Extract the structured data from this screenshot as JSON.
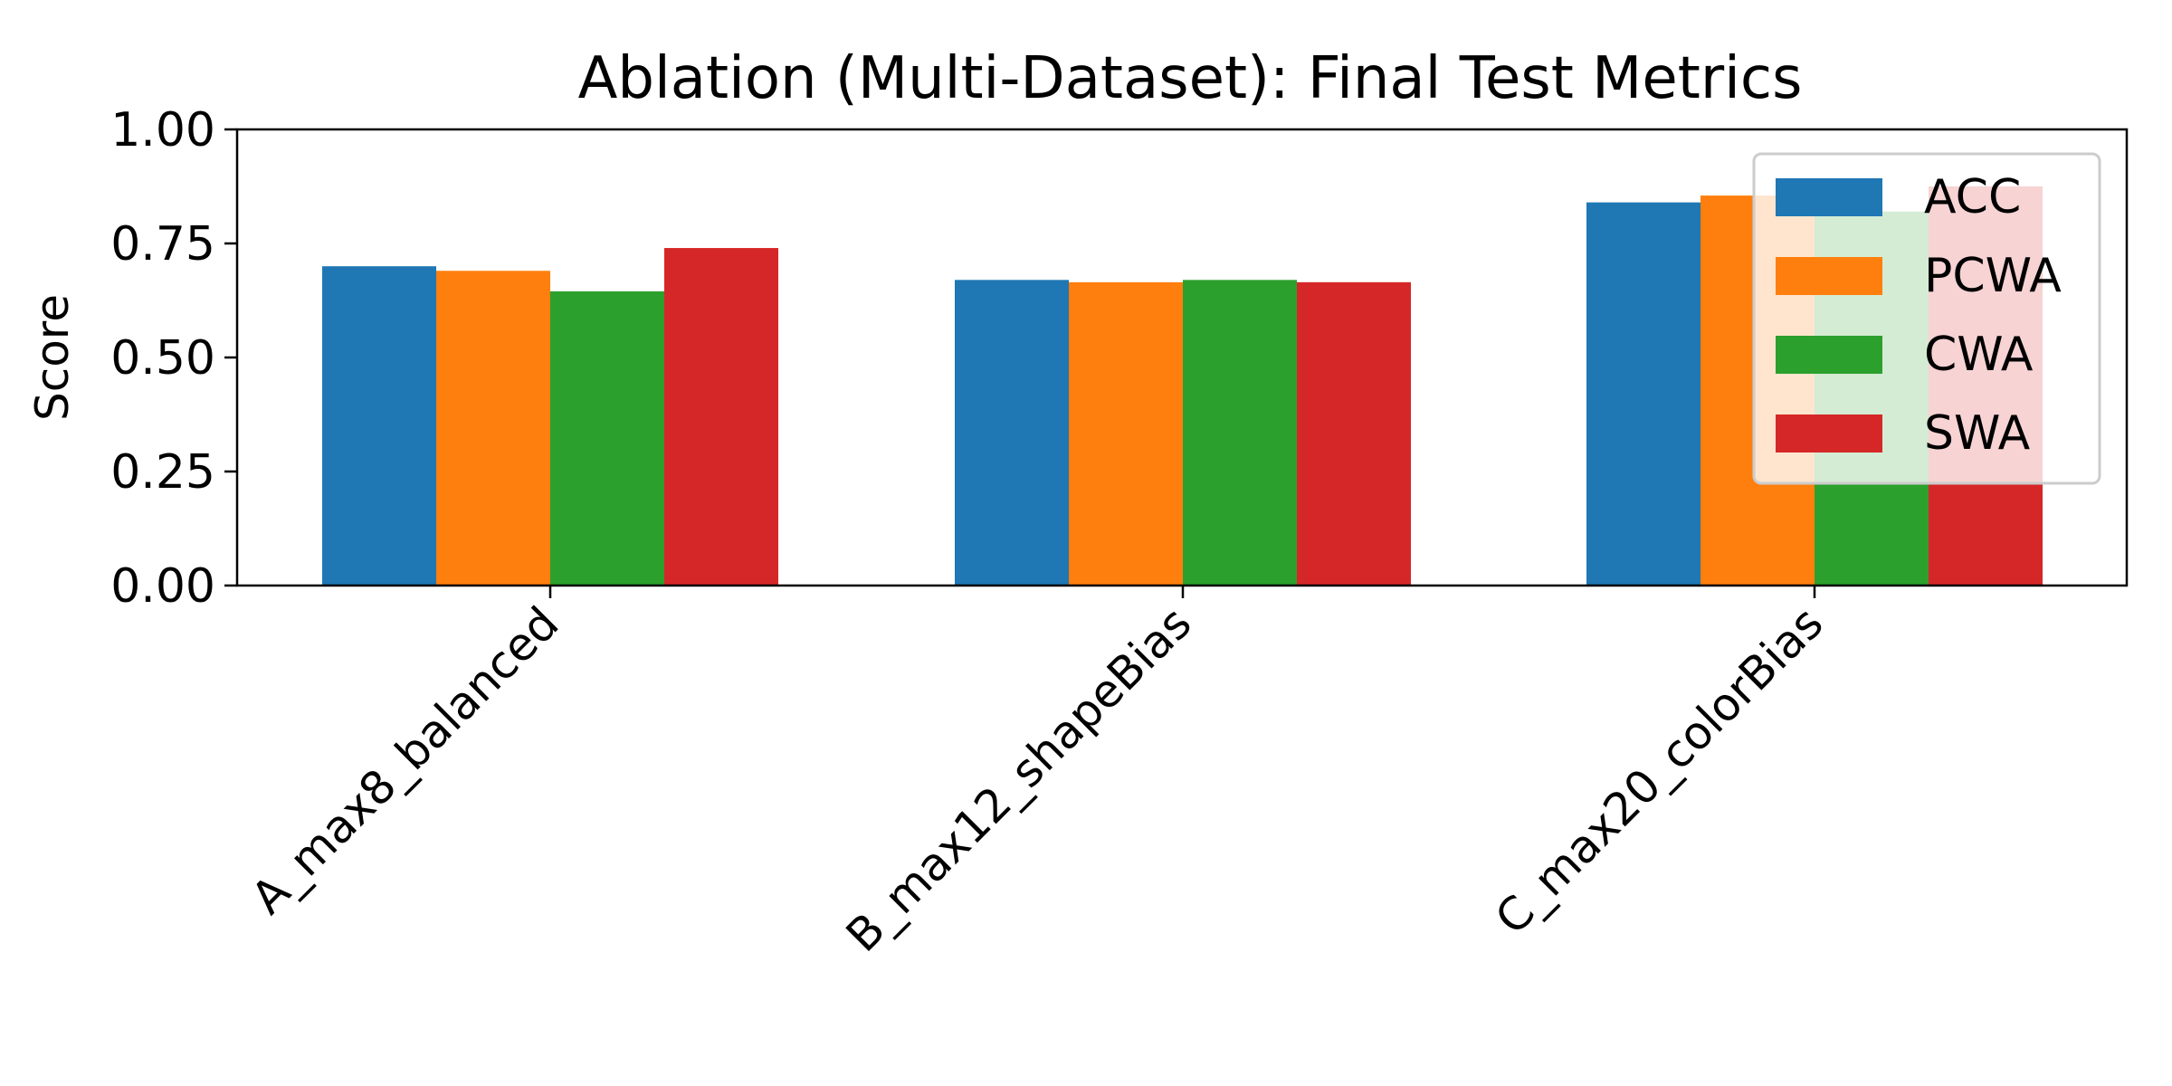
{
  "chart_data": {
    "type": "bar",
    "title": "Ablation (Multi-Dataset): Final Test Metrics",
    "xlabel": "",
    "ylabel": "Score",
    "ylim": [
      0,
      1
    ],
    "yticks": [
      0,
      0.25,
      0.5,
      0.75,
      1.0
    ],
    "ytick_labels": [
      "0.00",
      "0.25",
      "0.50",
      "0.75",
      "1.00"
    ],
    "categories": [
      "A_max8_balanced",
      "B_max12_shapeBias",
      "C_max20_colorBias"
    ],
    "series": [
      {
        "name": "ACC",
        "color": "#1f77b4",
        "values": [
          0.7,
          0.67,
          0.84
        ]
      },
      {
        "name": "PCWA",
        "color": "#ff7f0e",
        "values": [
          0.69,
          0.665,
          0.855
        ]
      },
      {
        "name": "CWA",
        "color": "#2ca02c",
        "values": [
          0.645,
          0.67,
          0.82
        ]
      },
      {
        "name": "SWA",
        "color": "#d62728",
        "values": [
          0.74,
          0.665,
          0.875
        ]
      }
    ],
    "legend": "upper right",
    "grid": false
  }
}
